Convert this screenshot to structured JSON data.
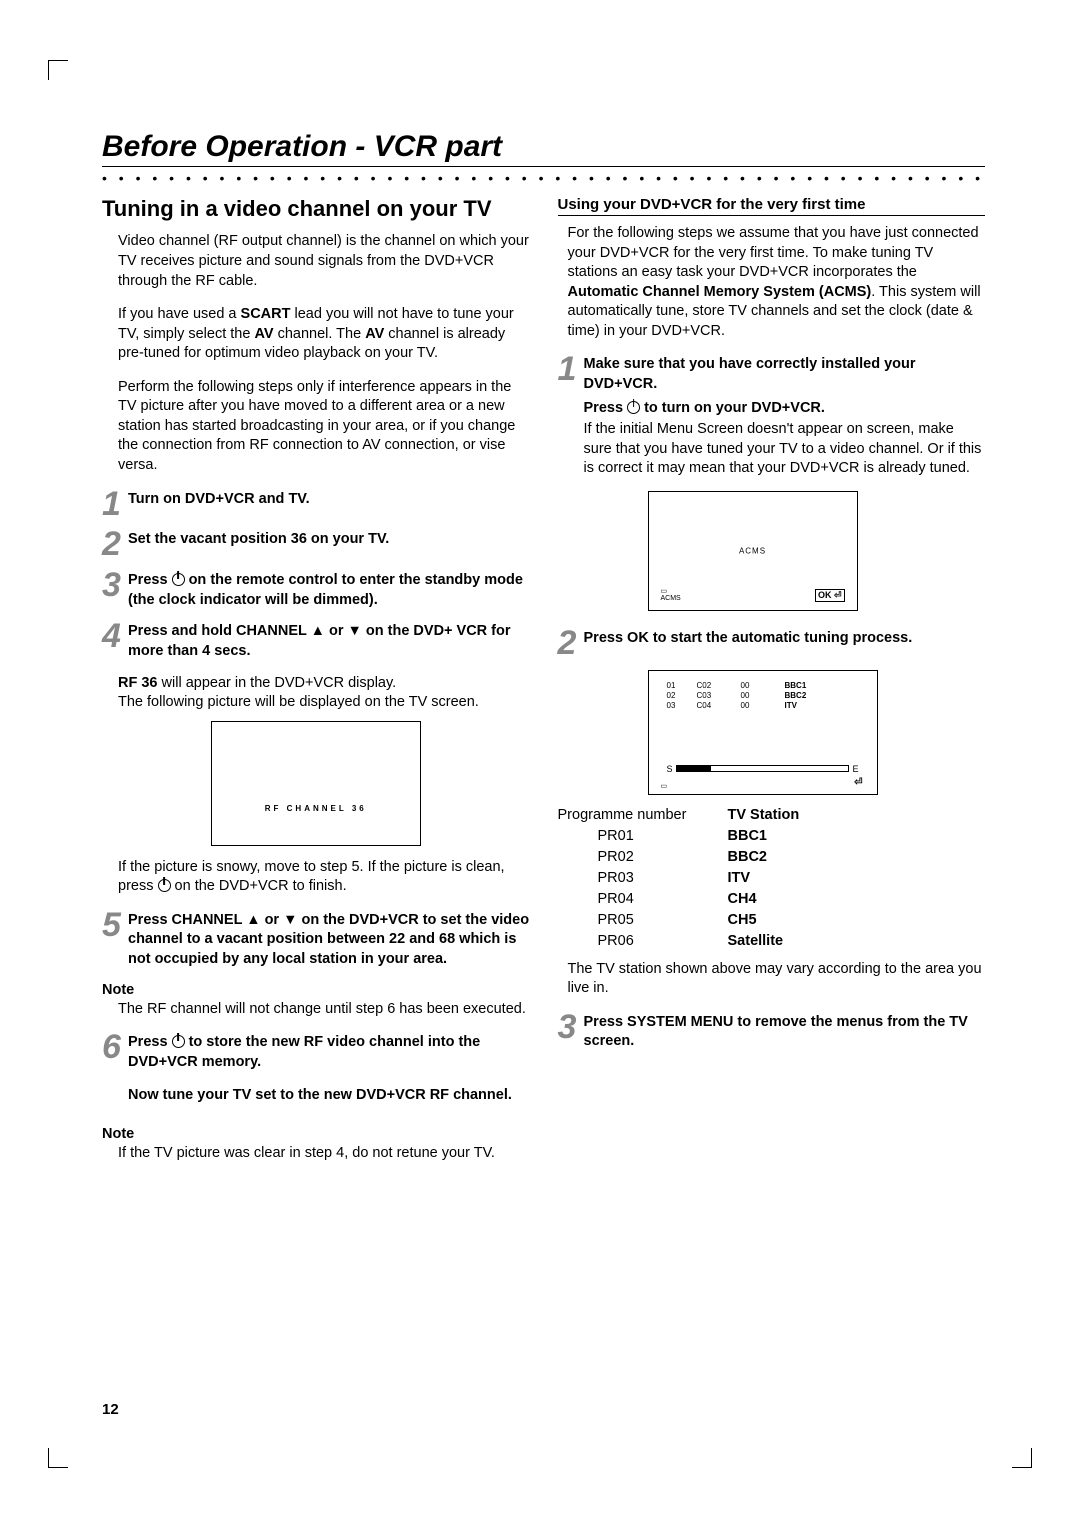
{
  "page_title": "Before Operation - VCR part",
  "page_number": "12",
  "left": {
    "subtitle": "Tuning in a video channel on your TV",
    "p1": "Video channel (RF output channel) is the channel on which your TV receives picture and sound signals from the DVD+VCR through the RF cable.",
    "p2a": "If you have used a ",
    "p2b": "SCART",
    "p2c": " lead you will not have to tune your TV, simply select the ",
    "p2d": "AV",
    "p2e": " channel. The ",
    "p2f": "AV",
    "p2g": " channel is already pre-tuned for optimum video playback on your TV.",
    "p3": "Perform the following steps only if interference appears in the TV picture after you have moved to a different area or a new station has started broadcasting in your area, or if you change the connection from RF connection to AV connection, or vise versa.",
    "step1": "Turn on DVD+VCR and TV.",
    "step2": "Set the vacant position 36 on your TV.",
    "step3a": "Press ",
    "step3b": " on the remote control to enter the standby mode (the clock indicator will be dimmed).",
    "step4": "Press and hold CHANNEL ▲ or ▼ on the DVD+ VCR for more than 4 secs.",
    "p4a": "RF 36",
    "p4b": " will appear in the DVD+VCR display.",
    "p4c": "The following picture will be displayed on the TV screen.",
    "rf_label": "RF   CHANNEL        36",
    "p5a": "If the picture is snowy, move to step 5. If the picture is clean, press ",
    "p5b": " on the DVD+VCR to finish.",
    "step5": "Press CHANNEL ▲ or ▼ on the DVD+VCR to set the video channel to a vacant position between 22 and 68 which is not occupied by any local station in your area.",
    "note1_label": "Note",
    "note1_text": "The RF channel will not change until step 6 has been executed.",
    "step6a": "Press ",
    "step6b": " to store the new RF video channel into the DVD+VCR memory.",
    "step6c": "Now tune your TV set to the new DVD+VCR RF channel.",
    "note2_label": "Note",
    "note2_text": "If the TV picture was clear in step 4, do not retune your TV."
  },
  "right": {
    "section_head": "Using your DVD+VCR for the very first time",
    "p1a": "For the following steps we assume that you have just connected your DVD+VCR for the very first time. To make tuning TV stations an easy task your DVD+VCR incorporates the ",
    "p1b": "Automatic Channel Memory System (ACMS)",
    "p1c": ". This system will automatically tune, store TV channels and set the clock (date & time) in your DVD+VCR.",
    "step1a": "Make sure that you have correctly installed your DVD+VCR.",
    "step1b_a": "Press ",
    "step1b_b": " to turn on your DVD+VCR.",
    "step1c": "If the initial Menu Screen doesn't appear on screen, make sure that you have tuned your TV to a video channel. Or if this is correct it may mean that your DVD+VCR is already tuned.",
    "acms_label": "ACMS",
    "acms_small": "PR-12\nACMS",
    "acms_ok": "OK ⏎",
    "step2": "Press OK to start the automatic tuning process.",
    "tune_rows": [
      [
        "01",
        "C02",
        "00",
        "BBC1"
      ],
      [
        "02",
        "C03",
        "00",
        "BBC2"
      ],
      [
        "03",
        "C04",
        "00",
        "ITV"
      ]
    ],
    "bar_s": "S",
    "bar_e": "E",
    "tune_icon_r": "⏎",
    "prog_head_1": "Programme number",
    "prog_head_2": "TV Station",
    "prog_rows": [
      [
        "PR01",
        "BBC1"
      ],
      [
        "PR02",
        "BBC2"
      ],
      [
        "PR03",
        "ITV"
      ],
      [
        "PR04",
        "CH4"
      ],
      [
        "PR05",
        "CH5"
      ],
      [
        "PR06",
        "Satellite"
      ]
    ],
    "p_after": "The TV station shown above may vary according to the area you live in.",
    "step3": "Press SYSTEM MENU to remove the menus from the TV screen."
  }
}
